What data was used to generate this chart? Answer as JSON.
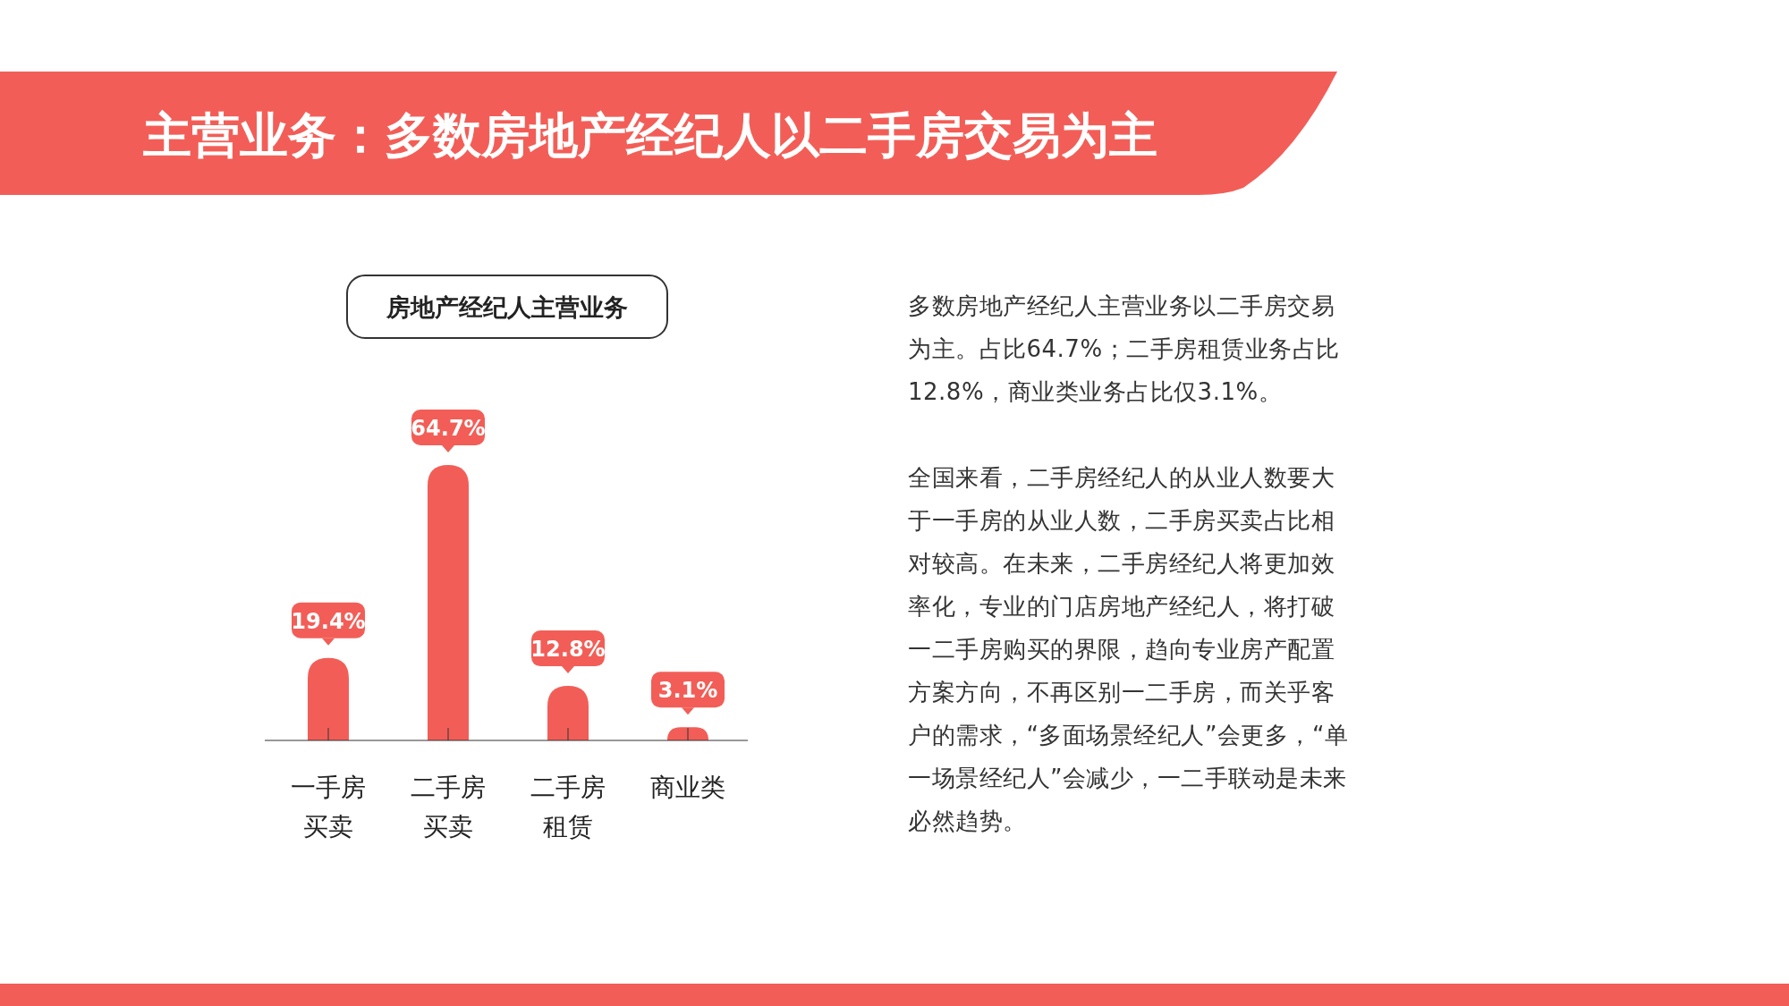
{
  "chart_data": {
    "type": "bar",
    "title": "主营业务：多数房地产经纪人以二手房交易为主",
    "subtitle": "房地产经纪人主营业务",
    "categories": [
      "一手房买卖",
      "二手房买卖",
      "二手房租赁",
      "商业类"
    ],
    "values": [
      19.4,
      64.7,
      12.8,
      3.1
    ],
    "color": "#f25e57",
    "value_labels": [
      "19.4%",
      "64.7%",
      "12.8%",
      "3.1%"
    ],
    "annotations": [
      "多数房地产经纪人主营业务以二手房交易为主。占比64.7%；二手房租赁业务占比12.8%，商业类业务占比仅3.1%。",
      "全国来看，二手房经纪人的从业人数要大于一手房的从业人数，二手房买卖占比相对较高。在未来，二手房经纪人将更加效率化，专业的门店房地产经纪人，将打破一二手房购买的界限，趋向专业房产配置方案方向，不再区别一二手房，而关乎客户的需求，“多面场景经纪人”会更多，“单一场景经纪人”会减少，一二手联动是未来必然趋势。"
    ]
  }
}
